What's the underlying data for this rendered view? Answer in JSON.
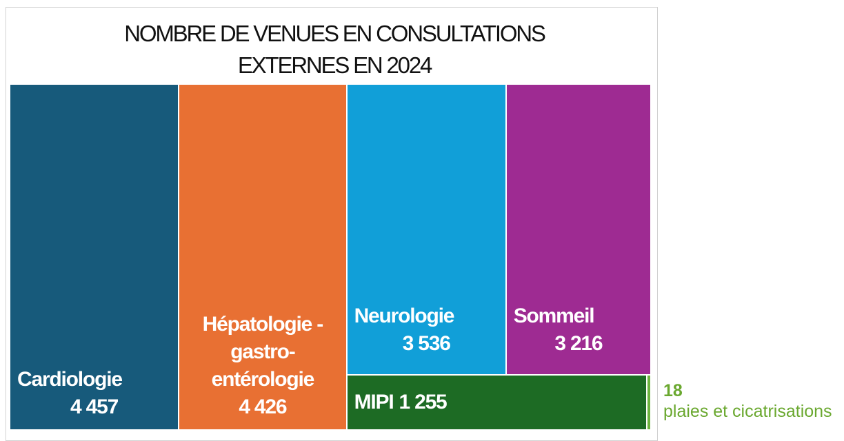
{
  "chart_data": {
    "type": "treemap",
    "title": "NOMBRE DE VENUES EN CONSULTATIONS EXTERNES EN 2024",
    "categories": [
      "Cardiologie",
      "Hépatologie - gastro-entérologie",
      "Neurologie",
      "Sommeil",
      "MIPI",
      "plaies et cicatrisations"
    ],
    "values": [
      4457,
      4426,
      3536,
      3216,
      1255,
      18
    ],
    "value_labels": [
      "4 457",
      "4 426",
      "3 536",
      "3 216",
      "1 255",
      "18"
    ],
    "colors": [
      "#175a7b",
      "#e87033",
      "#119fd8",
      "#9e2b92",
      "#1d6b24",
      "#6db33f"
    ]
  }
}
